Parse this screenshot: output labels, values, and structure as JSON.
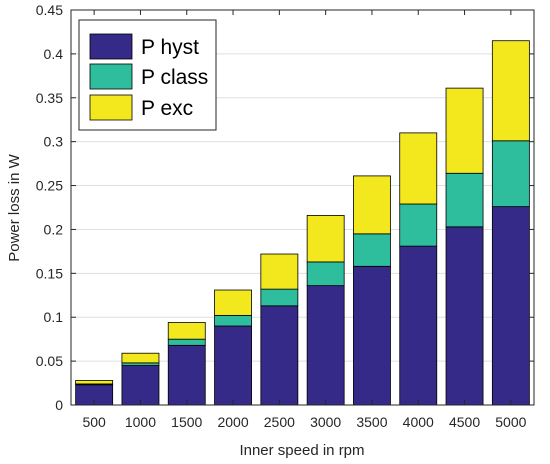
{
  "chart_data": {
    "type": "bar",
    "stacked": true,
    "xlabel": "Inner speed in rpm",
    "ylabel": "Power loss in W",
    "ylim": [
      0,
      0.45
    ],
    "yticks": [
      "0",
      "0.05",
      "0.1",
      "0.15",
      "0.2",
      "0.25",
      "0.3",
      "0.35",
      "0.4",
      "0.45"
    ],
    "categories": [
      "500",
      "1000",
      "1500",
      "2000",
      "2500",
      "3000",
      "3500",
      "4000",
      "4500",
      "5000"
    ],
    "grid": true,
    "legend_position": "top-left",
    "series": [
      {
        "name": "P hyst",
        "color": "#352a87",
        "values": [
          0.023,
          0.045,
          0.068,
          0.09,
          0.113,
          0.136,
          0.158,
          0.181,
          0.203,
          0.226
        ]
      },
      {
        "name": "P class",
        "color": "#2ebe9e",
        "values": [
          0.001,
          0.003,
          0.007,
          0.012,
          0.019,
          0.027,
          0.037,
          0.048,
          0.061,
          0.075
        ]
      },
      {
        "name": "P exc",
        "color": "#f3e81e",
        "values": [
          0.004,
          0.011,
          0.019,
          0.029,
          0.04,
          0.053,
          0.066,
          0.081,
          0.097,
          0.114
        ]
      }
    ]
  }
}
